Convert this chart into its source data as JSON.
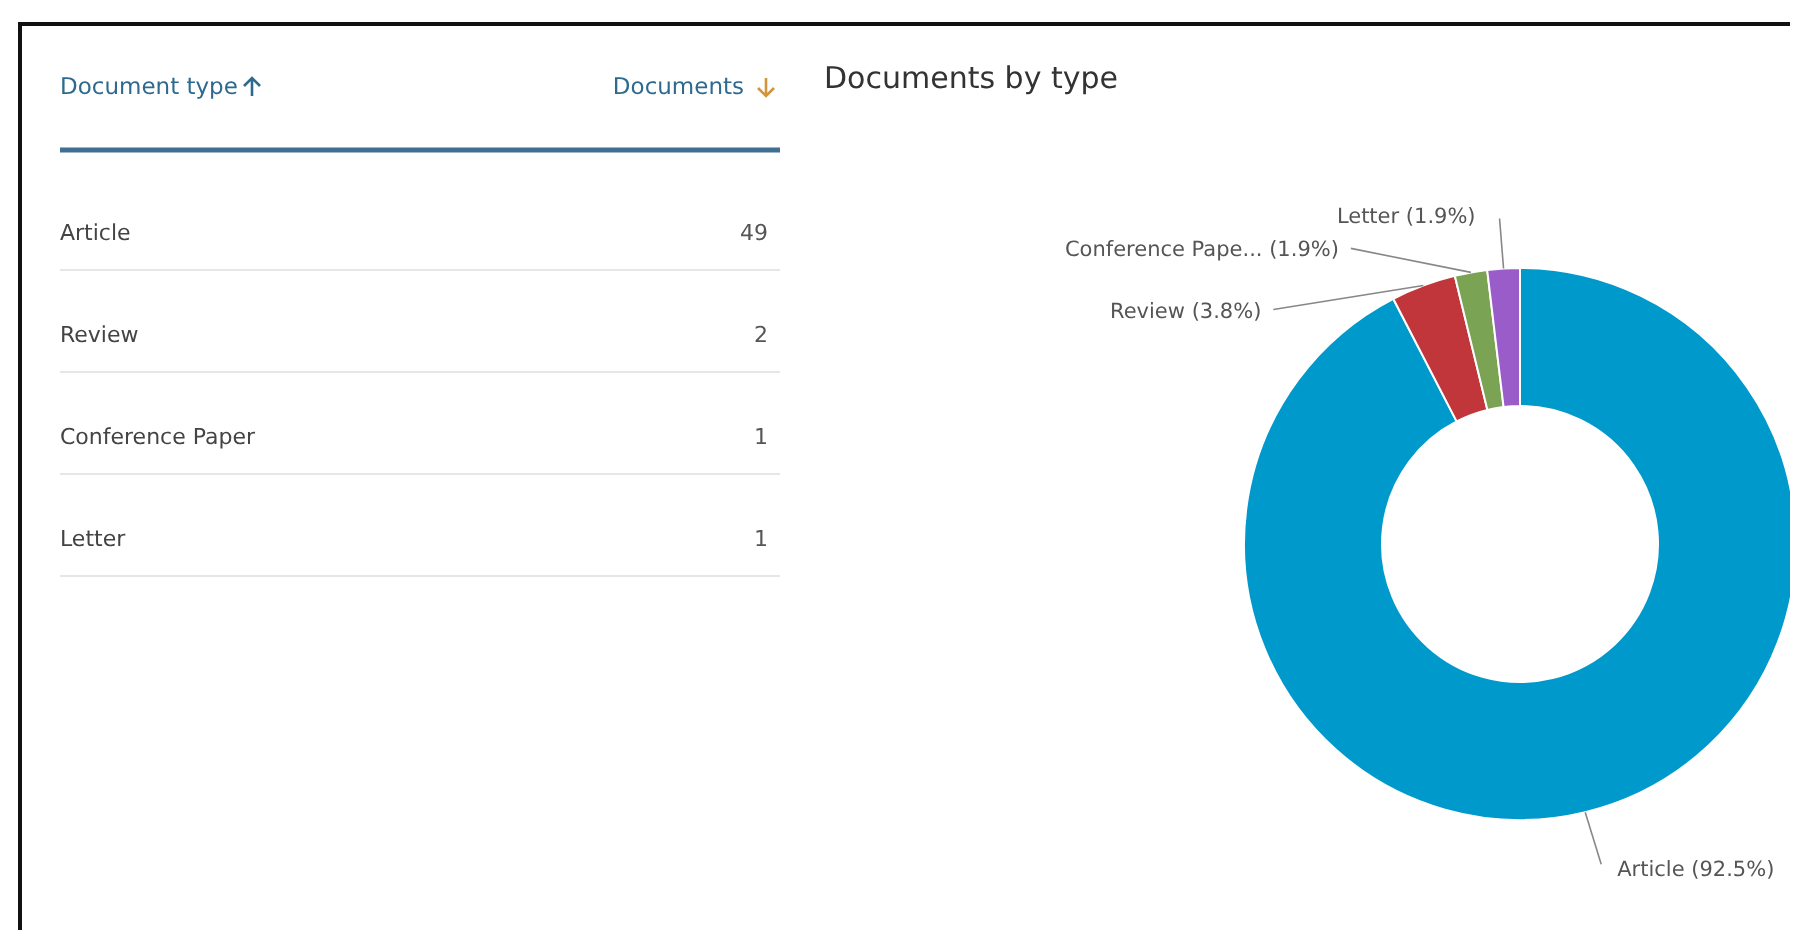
{
  "chart_data": [
    {
      "type": "other",
      "annotations": [
        "Document type",
        "Documents",
        "Article",
        "49",
        "Review",
        "2",
        "Conference Paper",
        "1",
        "Letter",
        "1"
      ]
    },
    {
      "type": "donut",
      "title": "Documents by type",
      "categories": [
        "Article",
        "Review",
        "Conference Pape...",
        "Letter"
      ],
      "values": [
        92.5,
        3.8,
        1.9,
        1.9
      ],
      "colors": [
        "#0099cc",
        "#c0363a",
        "#7aa454",
        "#9a5cc8"
      ],
      "value_labels": [
        "(92.5%)",
        "(3.8%)",
        "(1.9%)",
        "(1.9%)"
      ]
    }
  ]
}
